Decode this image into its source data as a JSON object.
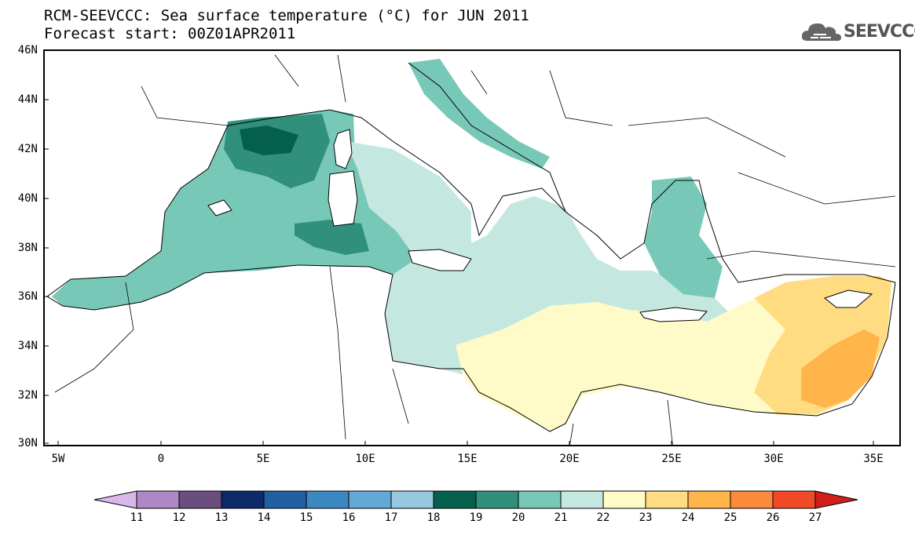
{
  "title": {
    "line1": "RCM-SEEVCCC: Sea surface temperature (°C) for JUN 2011",
    "line2": "Forecast start: 00Z01APR2011"
  },
  "logo": {
    "text": "SEEVCCC",
    "icon": "cloud-icon"
  },
  "axes": {
    "lat_labels": [
      "46N",
      "44N",
      "42N",
      "40N",
      "38N",
      "36N",
      "34N",
      "32N",
      "30N"
    ],
    "lon_labels": [
      "5W",
      "0",
      "5E",
      "10E",
      "15E",
      "20E",
      "25E",
      "30E",
      "35E"
    ]
  },
  "colorbar": {
    "labels": [
      "11",
      "12",
      "13",
      "14",
      "15",
      "16",
      "17",
      "18",
      "19",
      "20",
      "21",
      "22",
      "23",
      "24",
      "25",
      "26",
      "27"
    ],
    "colors": [
      "#d8b8e8",
      "#b088c8",
      "#6a4e7e",
      "#0c2a6a",
      "#2060a0",
      "#3c88c0",
      "#64a8d8",
      "#98c8e0",
      "#04604c",
      "#30907c",
      "#78c8b8",
      "#c4e8e0",
      "#fffbc8",
      "#ffdc82",
      "#ffb54a",
      "#fb8a3c",
      "#f04a28",
      "#d02018"
    ]
  },
  "map": {
    "region": "Mediterranean Sea",
    "colors": {
      "sea_21": "#c4e8e0",
      "sea_22": "#fffbc8",
      "sea_23": "#ffdc82",
      "sea_24": "#ffb54a",
      "sea_20": "#78c8b8",
      "sea_19": "#30907c",
      "sea_18": "#04604c",
      "land": "#ffffff"
    }
  }
}
